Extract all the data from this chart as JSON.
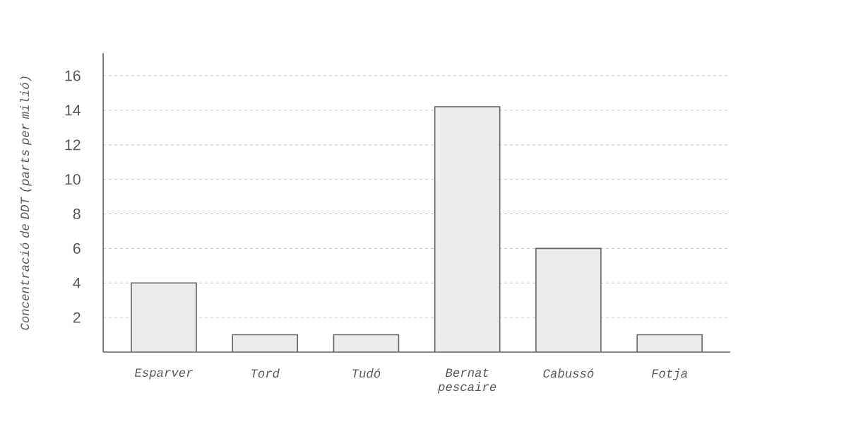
{
  "chart_data": {
    "type": "bar",
    "ylabel": "Concentració de DDT (parts per milió)",
    "categories": [
      "Esparver",
      "Tord",
      "Tudó",
      "Bernat pescaire",
      "Cabussó",
      "Fotja"
    ],
    "values": [
      4,
      1,
      1,
      14.2,
      6,
      1
    ],
    "color": "#ececec",
    "ylim": [
      0,
      17.3
    ],
    "yticks": [
      2,
      4,
      6,
      8,
      10,
      12,
      14,
      16
    ],
    "grid": "y"
  }
}
